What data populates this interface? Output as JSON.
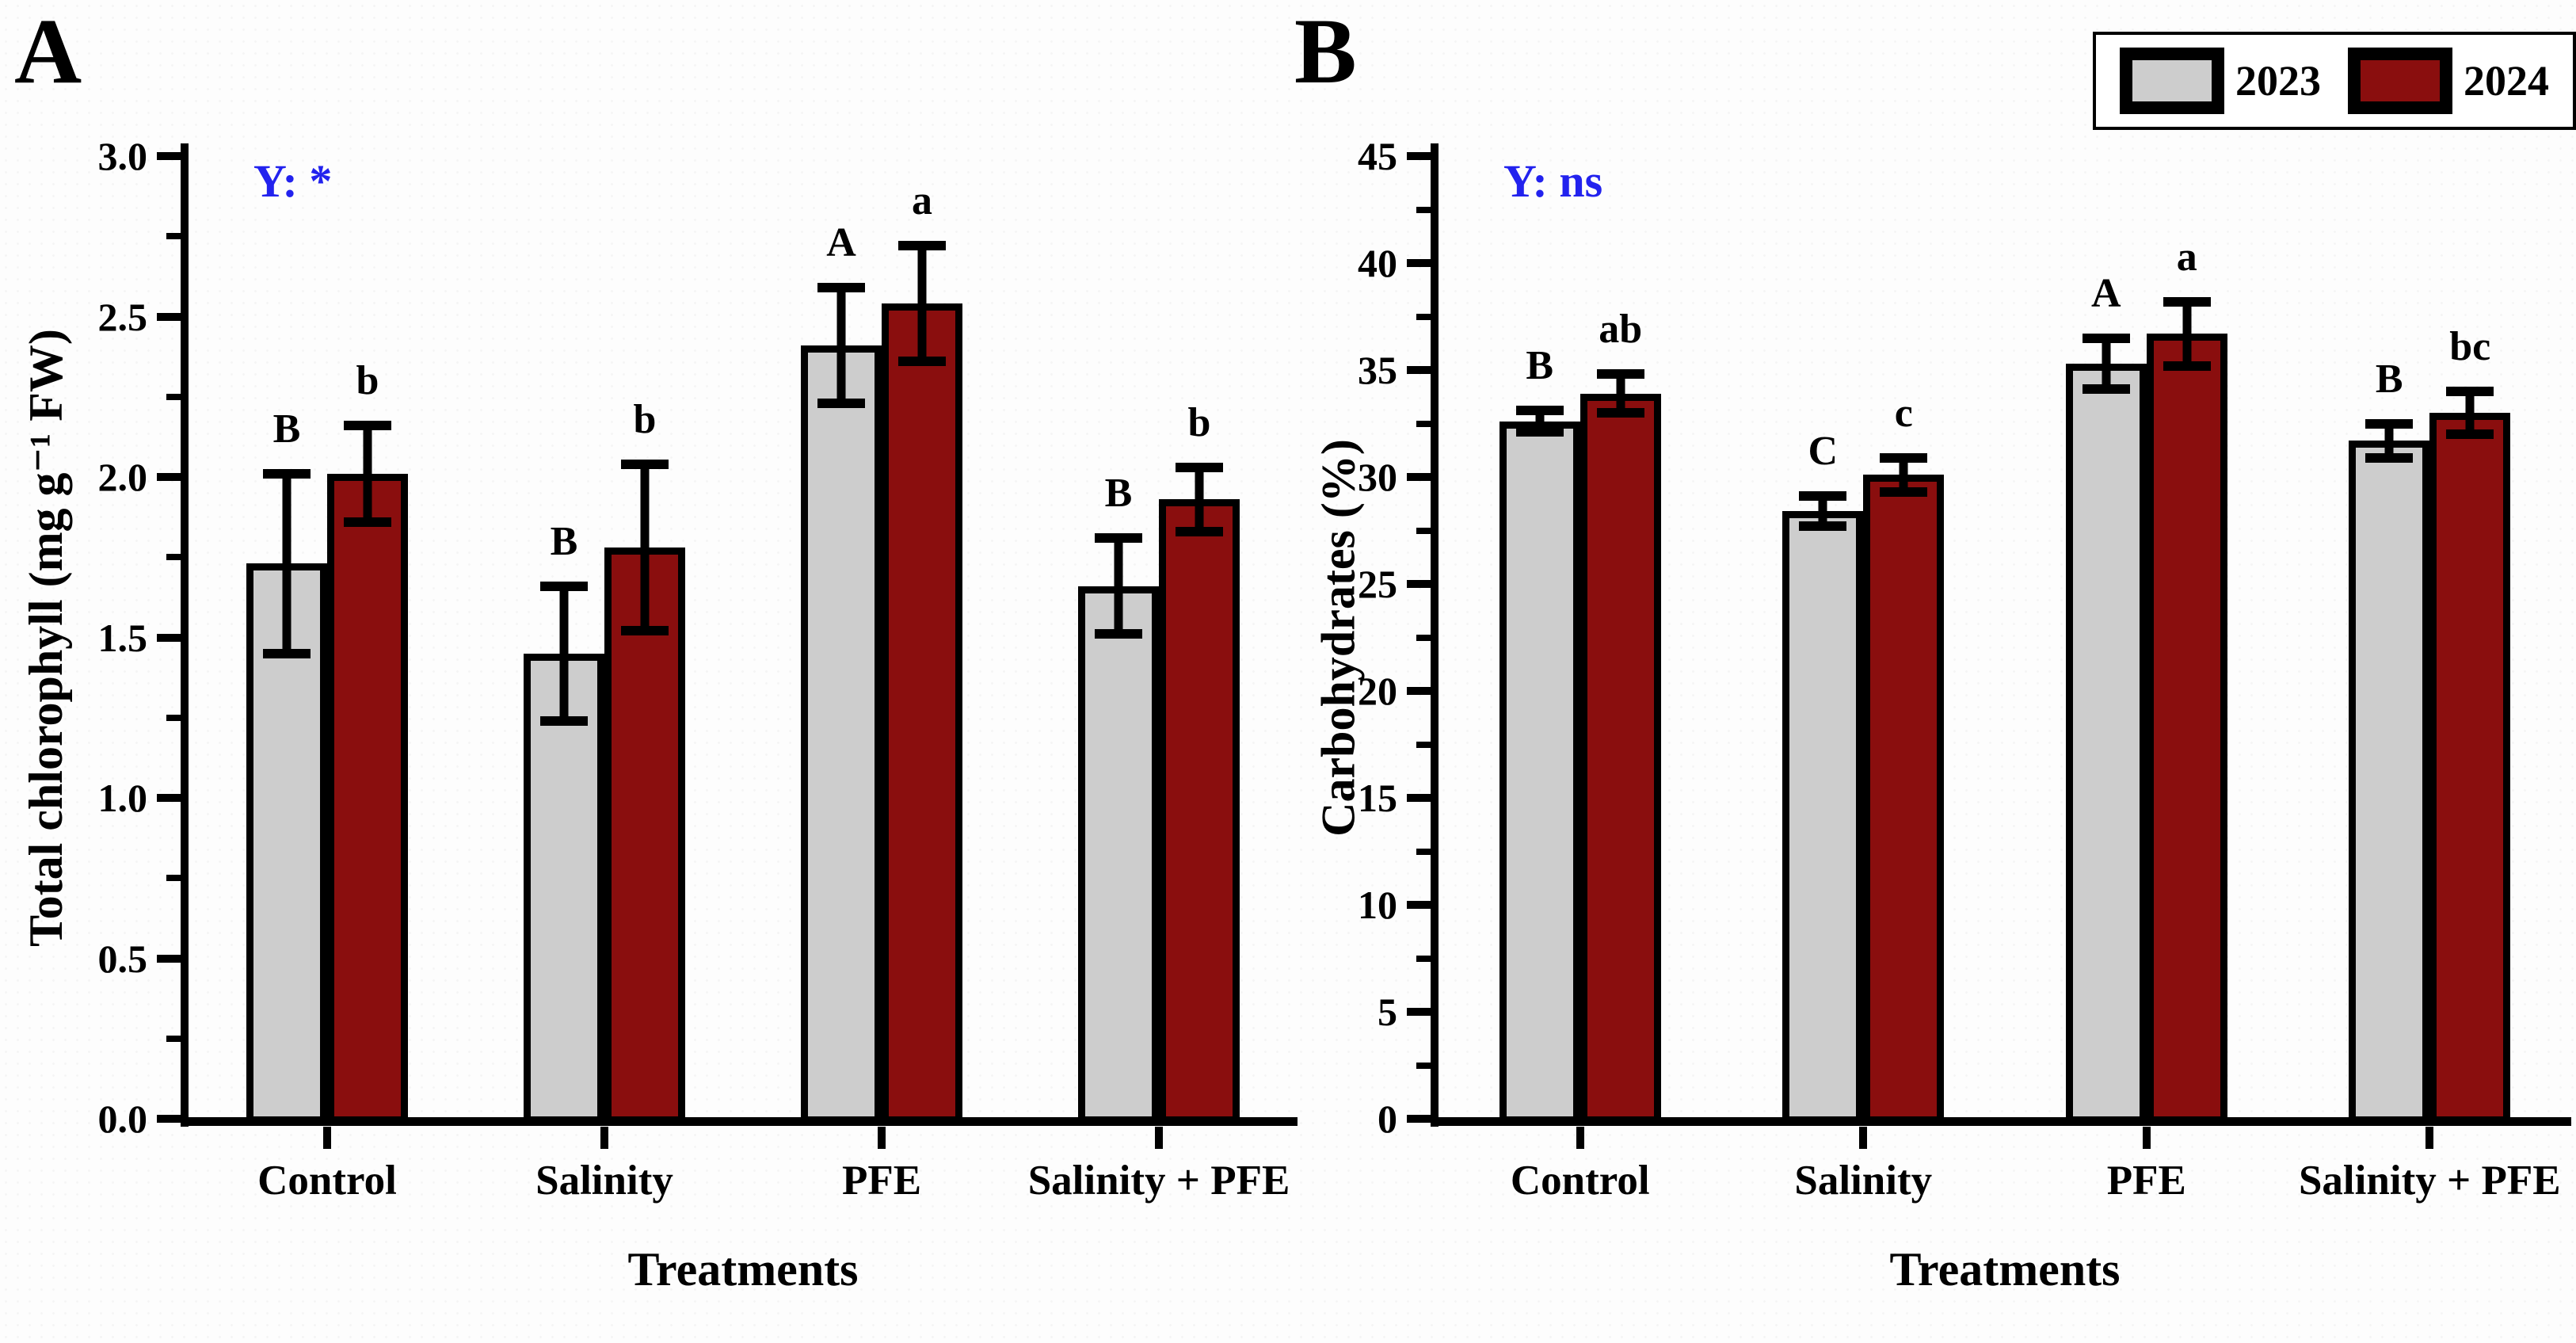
{
  "colors": {
    "series_2023": "#cdcdcd",
    "series_2024": "#8a0e0e",
    "annotation_blue": "#2222ee",
    "axis_black": "#000000"
  },
  "legend": {
    "items": [
      {
        "label": "2023",
        "color": "#cdcdcd"
      },
      {
        "label": "2024",
        "color": "#8a0e0e"
      }
    ]
  },
  "chart_data": [
    {
      "type": "bar",
      "panel_label": "A",
      "annotation": "Y: *",
      "ylabel": "Total chlorophyll (mg g⁻¹ FW)",
      "xlabel": "Treatments",
      "categories": [
        "Control",
        "Salinity",
        "PFE",
        "Salinity + PFE"
      ],
      "ylim": [
        0,
        3.0
      ],
      "yticks": [
        "0.0",
        "0.5",
        "1.0",
        "1.5",
        "2.0",
        "2.5",
        "3.0"
      ],
      "minor_ticks_per_interval": 1,
      "grid": false,
      "legend_position": "top-right-outside",
      "series": [
        {
          "name": "2023",
          "color": "#cdcdcd",
          "values": [
            1.73,
            1.45,
            2.41,
            1.66
          ],
          "errors": [
            0.28,
            0.21,
            0.18,
            0.15
          ],
          "letters": [
            "B",
            "B",
            "A",
            "B"
          ]
        },
        {
          "name": "2024",
          "color": "#8a0e0e",
          "values": [
            2.01,
            1.78,
            2.54,
            1.93
          ],
          "errors": [
            0.15,
            0.26,
            0.18,
            0.1
          ],
          "letters": [
            "b",
            "b",
            "a",
            "b"
          ]
        }
      ]
    },
    {
      "type": "bar",
      "panel_label": "B",
      "annotation": "Y: ns",
      "ylabel": "Carbohydrates (%)",
      "xlabel": "Treatments",
      "categories": [
        "Control",
        "Salinity",
        "PFE",
        "Salinity + PFE"
      ],
      "ylim": [
        0,
        45
      ],
      "yticks": [
        "0",
        "5",
        "10",
        "15",
        "20",
        "25",
        "30",
        "35",
        "40",
        "45"
      ],
      "minor_ticks_per_interval": 1,
      "grid": false,
      "legend_position": "top-right-outside",
      "series": [
        {
          "name": "2023",
          "color": "#cdcdcd",
          "values": [
            32.6,
            28.4,
            35.3,
            31.7
          ],
          "errors": [
            0.5,
            0.7,
            1.2,
            0.8
          ],
          "letters": [
            "B",
            "C",
            "A",
            "B"
          ]
        },
        {
          "name": "2024",
          "color": "#8a0e0e",
          "values": [
            33.9,
            30.1,
            36.7,
            33.0
          ],
          "errors": [
            0.9,
            0.8,
            1.5,
            1.0
          ],
          "letters": [
            "ab",
            "c",
            "a",
            "bc"
          ]
        }
      ]
    }
  ]
}
